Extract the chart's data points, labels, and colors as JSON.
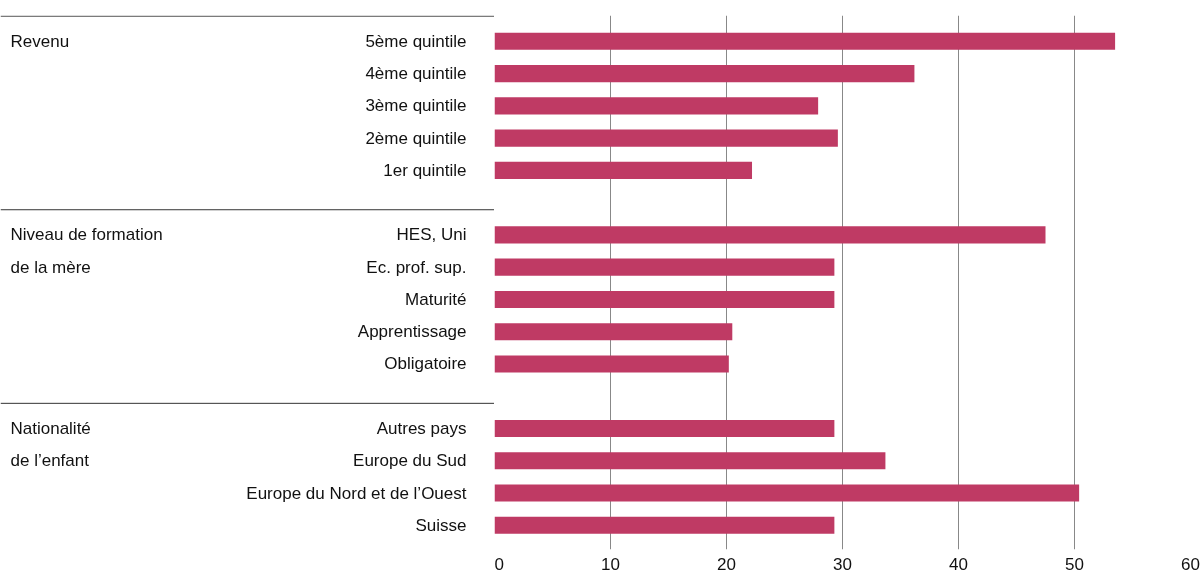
{
  "chart_data": {
    "type": "bar",
    "orientation": "horizontal",
    "categories": [
      "5ème quintile",
      "4ème quintile",
      "3ème quintile",
      "2ème quintile",
      "1er quintile",
      null,
      "HES, Uni",
      "Ec. prof. sup.",
      "Maturité",
      "Apprentissage",
      "Obligatoire",
      null,
      "Autres pays",
      "Europe du Sud",
      "Europe du Nord et de l’Ouest",
      "Suisse"
    ],
    "values": [
      53.5,
      36.2,
      27.9,
      29.6,
      22.2,
      null,
      47.5,
      29.3,
      29.3,
      20.5,
      20.2,
      null,
      29.3,
      33.7,
      50.4,
      29.3
    ],
    "color": "#bf3a64",
    "annotations": [
      "Revenu",
      "Niveau de formation\nde la mère",
      "Nationalité\nde l’enfant"
    ],
    "xlim": [
      0,
      60
    ],
    "xticks": [
      0,
      10,
      20,
      30,
      40,
      50,
      60
    ],
    "grid": "x"
  }
}
